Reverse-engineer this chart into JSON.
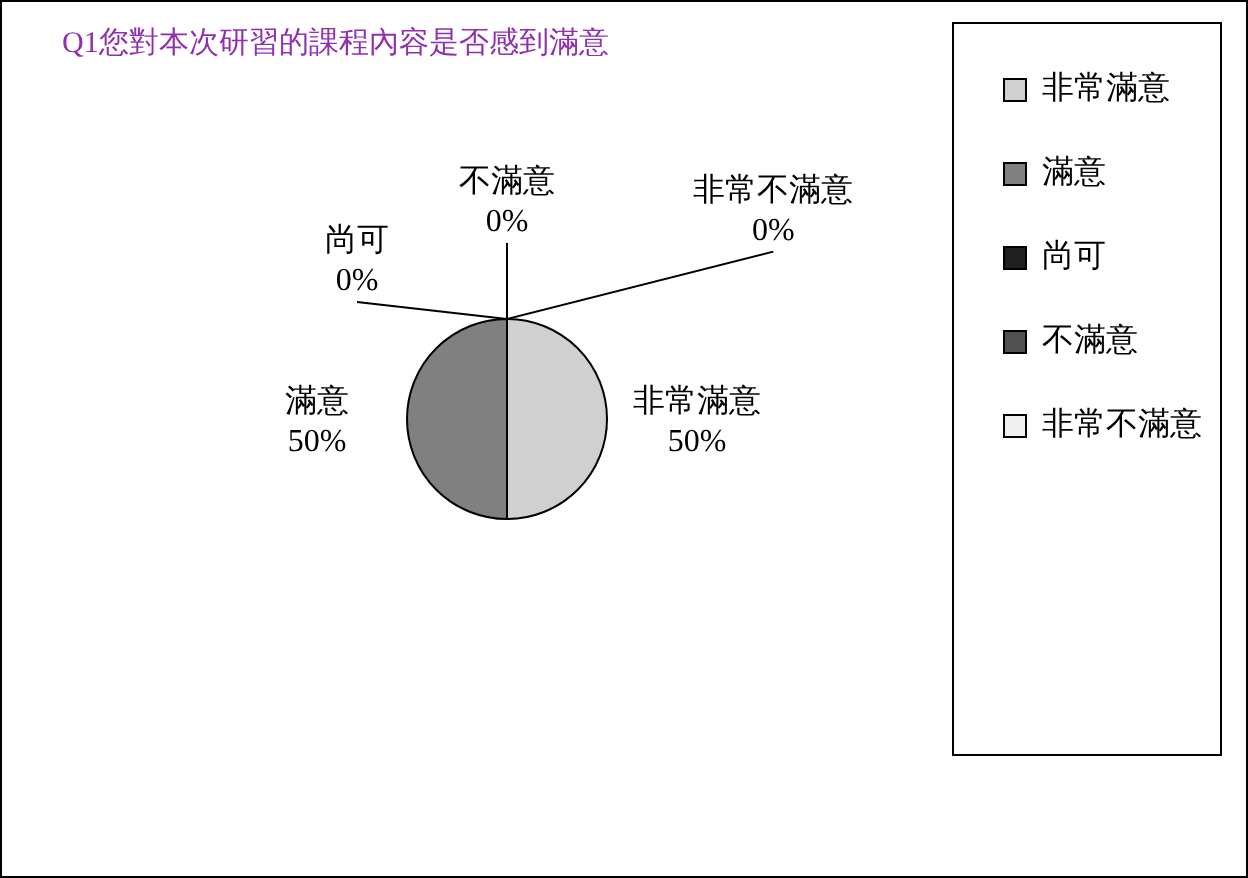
{
  "chart_data": {
    "type": "pie",
    "title": "Q1您對本次研習的課程內容是否感到滿意",
    "categories": [
      "非常滿意",
      "滿意",
      "尚可",
      "不滿意",
      "非常不滿意"
    ],
    "values": [
      50,
      50,
      0,
      0,
      0
    ],
    "value_labels": [
      "50%",
      "50%",
      "0%",
      "0%",
      "0%"
    ],
    "colors": [
      "#d0d0d0",
      "#808080",
      "#202020",
      "#505050",
      "#f0f0f0"
    ],
    "legend": "right"
  }
}
